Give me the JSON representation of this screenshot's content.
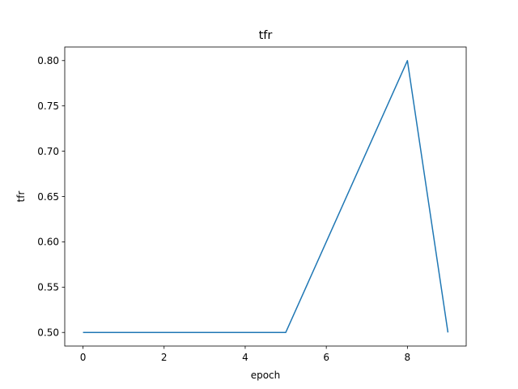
{
  "chart_data": {
    "type": "line",
    "title": "tfr",
    "xlabel": "epoch",
    "ylabel": "tfr",
    "x": [
      0,
      1,
      2,
      3,
      4,
      5,
      6,
      7,
      8,
      9
    ],
    "series": [
      {
        "values": [
          0.5,
          0.5,
          0.5,
          0.5,
          0.5,
          0.5,
          0.6,
          0.7,
          0.8,
          0.5
        ],
        "color": "#1f77b4"
      }
    ],
    "xlim": [
      -0.45,
      9.45
    ],
    "ylim": [
      0.485,
      0.815
    ],
    "xticks": [
      0,
      2,
      4,
      6,
      8
    ],
    "xtick_labels": [
      "0",
      "2",
      "4",
      "6",
      "8"
    ],
    "yticks": [
      0.5,
      0.55,
      0.6,
      0.65,
      0.7,
      0.75,
      0.8
    ],
    "ytick_labels": [
      "0.50",
      "0.55",
      "0.60",
      "0.65",
      "0.70",
      "0.75",
      "0.80"
    ],
    "grid": false,
    "legend": false
  }
}
